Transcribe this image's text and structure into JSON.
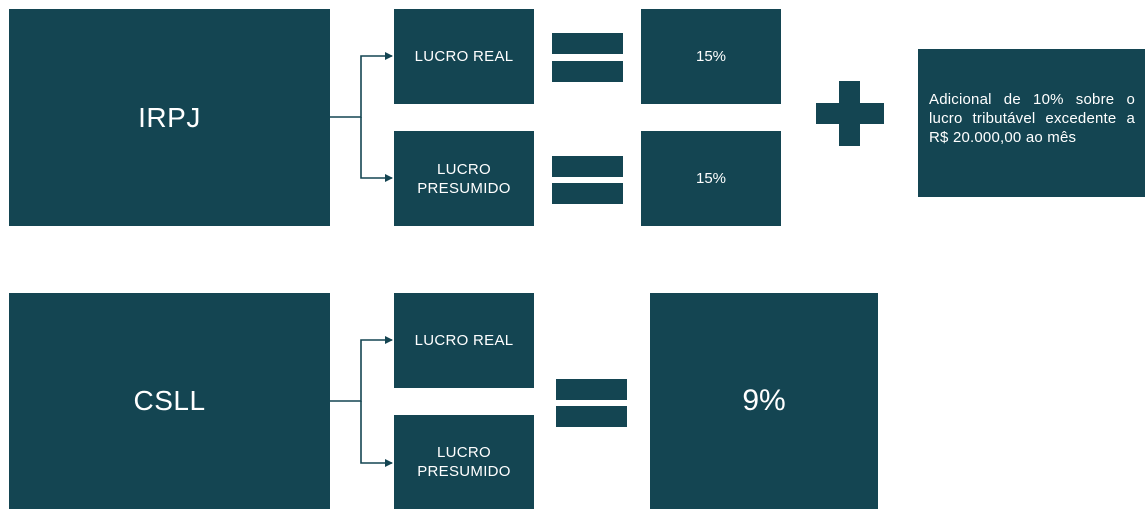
{
  "irpj": {
    "title": "IRPJ",
    "regimes": [
      "LUCRO REAL",
      "LUCRO\nPRESUMIDO"
    ],
    "rates": [
      "15%",
      "15%"
    ],
    "additional_note": "Adicional de 10% sobre o lucro tributável excedente a R$ 20.000,00  ao mês"
  },
  "csll": {
    "title": "CSLL",
    "regimes": [
      "LUCRO REAL",
      "LUCRO\nPRESUMIDO"
    ],
    "rate": "9%"
  },
  "colors": {
    "box": "#144552",
    "text": "#ffffff",
    "background": "#ffffff"
  }
}
